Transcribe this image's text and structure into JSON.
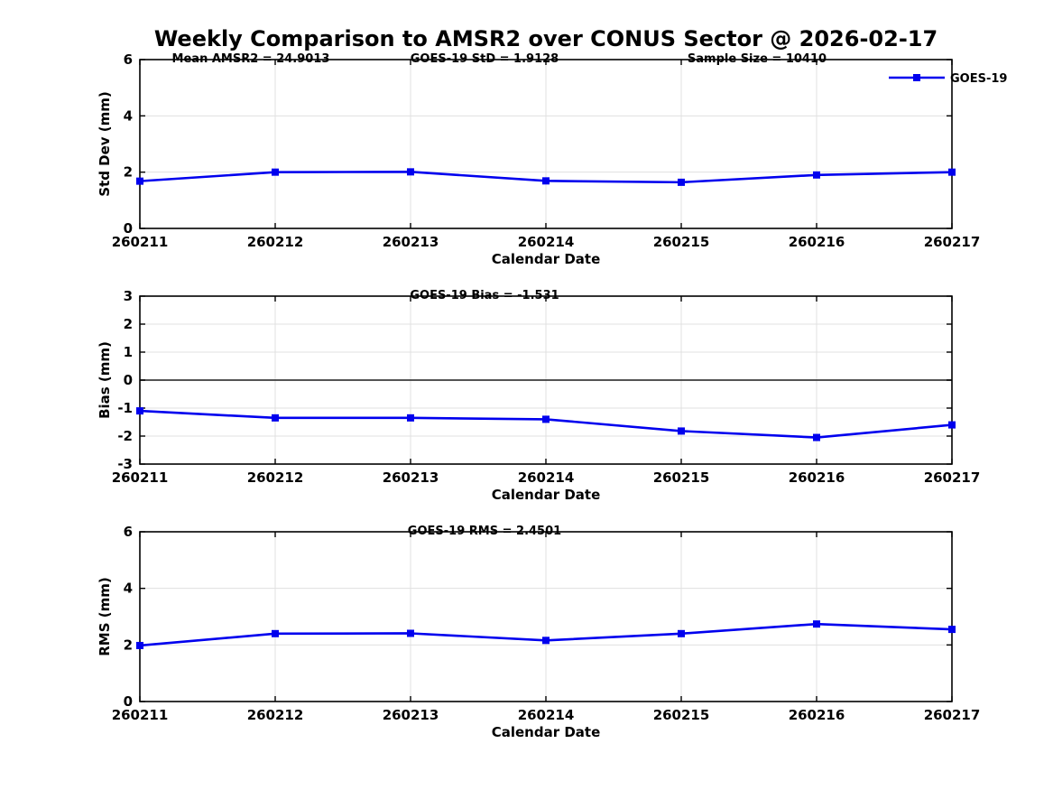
{
  "title": "Weekly Comparison to AMSR2 over CONUS Sector @ 2026-02-17",
  "legend": {
    "label": "GOES-19"
  },
  "colors": {
    "line": "#0000EE",
    "marker": "#0000EE",
    "grid": "#E0E0E0",
    "zero_line": "#3C3C3C",
    "axis": "#000000",
    "text": "#000000",
    "background": "#FFFFFF"
  },
  "chart_data": [
    {
      "type": "line",
      "panel": "std-dev",
      "annotations": [
        "Mean AMSR2 = 24.9013",
        "GOES-19 StD = 1.9128",
        "Sample Size = 10410"
      ],
      "categories": [
        "260211",
        "260212",
        "260213",
        "260214",
        "260215",
        "260216",
        "260217"
      ],
      "series": [
        {
          "name": "GOES-19",
          "values": [
            1.68,
            2.0,
            2.01,
            1.69,
            1.64,
            1.9,
            2.0
          ]
        }
      ],
      "xlabel": "Calendar Date",
      "ylabel": "Std Dev (mm)",
      "ylim": [
        0,
        6
      ],
      "yticks": [
        0,
        2,
        4,
        6
      ],
      "grid": true,
      "marker": "square",
      "legend_position": "top-right",
      "zero_line": false
    },
    {
      "type": "line",
      "panel": "bias",
      "annotations": [
        "GOES-19 Bias  = -1.531"
      ],
      "categories": [
        "260211",
        "260212",
        "260213",
        "260214",
        "260215",
        "260216",
        "260217"
      ],
      "series": [
        {
          "name": "GOES-19",
          "values": [
            -1.1,
            -1.35,
            -1.35,
            -1.4,
            -1.82,
            -2.05,
            -1.6
          ]
        }
      ],
      "xlabel": "Calendar Date",
      "ylabel": "Bias (mm)",
      "ylim": [
        -3,
        3
      ],
      "yticks": [
        -3,
        -2,
        -1,
        0,
        1,
        2,
        3
      ],
      "grid": true,
      "marker": "square",
      "zero_line": true
    },
    {
      "type": "line",
      "panel": "rms",
      "annotations": [
        "GOES-19 RMS = 2.4501"
      ],
      "categories": [
        "260211",
        "260212",
        "260213",
        "260214",
        "260215",
        "260216",
        "260217"
      ],
      "series": [
        {
          "name": "GOES-19",
          "values": [
            1.98,
            2.4,
            2.41,
            2.16,
            2.4,
            2.74,
            2.55
          ]
        }
      ],
      "xlabel": "Calendar Date",
      "ylabel": "RMS (mm)",
      "ylim": [
        0,
        6
      ],
      "yticks": [
        0,
        2,
        4,
        6
      ],
      "grid": true,
      "marker": "square",
      "zero_line": false
    }
  ]
}
